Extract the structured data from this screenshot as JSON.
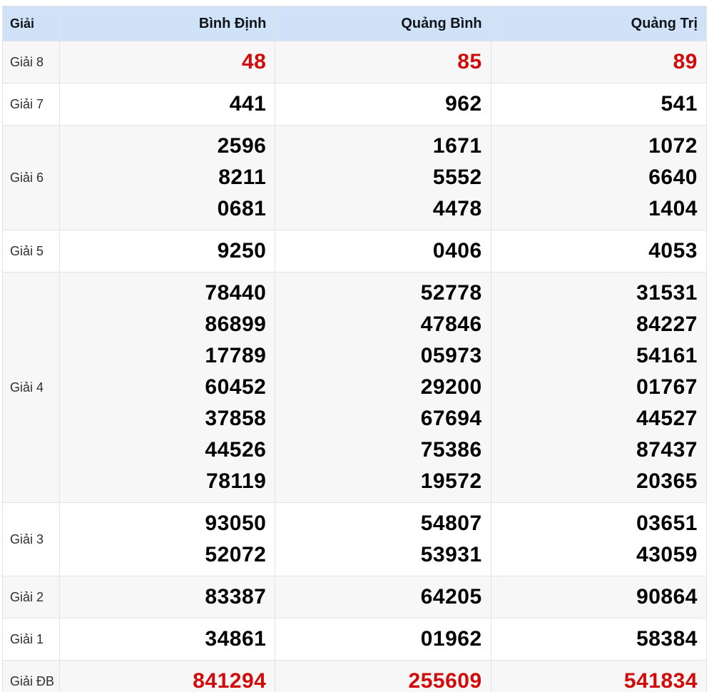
{
  "table": {
    "corner_label": "Giải",
    "columns": [
      "Bình Định",
      "Quảng Bình",
      "Quảng Trị"
    ],
    "rows": [
      {
        "label": "Giải 8",
        "highlight": true,
        "striped": true,
        "values": [
          [
            "48"
          ],
          [
            "85"
          ],
          [
            "89"
          ]
        ]
      },
      {
        "label": "Giải 7",
        "highlight": false,
        "striped": false,
        "values": [
          [
            "441"
          ],
          [
            "962"
          ],
          [
            "541"
          ]
        ]
      },
      {
        "label": "Giải 6",
        "highlight": false,
        "striped": true,
        "values": [
          [
            "2596",
            "8211",
            "0681"
          ],
          [
            "1671",
            "5552",
            "4478"
          ],
          [
            "1072",
            "6640",
            "1404"
          ]
        ]
      },
      {
        "label": "Giải 5",
        "highlight": false,
        "striped": false,
        "values": [
          [
            "9250"
          ],
          [
            "0406"
          ],
          [
            "4053"
          ]
        ]
      },
      {
        "label": "Giải 4",
        "highlight": false,
        "striped": true,
        "values": [
          [
            "78440",
            "86899",
            "17789",
            "60452",
            "37858",
            "44526",
            "78119"
          ],
          [
            "52778",
            "47846",
            "05973",
            "29200",
            "67694",
            "75386",
            "19572"
          ],
          [
            "31531",
            "84227",
            "54161",
            "01767",
            "44527",
            "87437",
            "20365"
          ]
        ]
      },
      {
        "label": "Giải 3",
        "highlight": false,
        "striped": false,
        "values": [
          [
            "93050",
            "52072"
          ],
          [
            "54807",
            "53931"
          ],
          [
            "03651",
            "43059"
          ]
        ]
      },
      {
        "label": "Giải 2",
        "highlight": false,
        "striped": true,
        "values": [
          [
            "83387"
          ],
          [
            "64205"
          ],
          [
            "90864"
          ]
        ]
      },
      {
        "label": "Giải 1",
        "highlight": false,
        "striped": false,
        "values": [
          [
            "34861"
          ],
          [
            "01962"
          ],
          [
            "58384"
          ]
        ]
      },
      {
        "label": "Giải ĐB",
        "highlight": true,
        "striped": true,
        "values": [
          [
            "841294"
          ],
          [
            "255609"
          ],
          [
            "541834"
          ]
        ]
      }
    ],
    "colors": {
      "header_bg": "#cfe2f8",
      "row_alt_bg": "#f7f7f7",
      "border": "#e3e3e3",
      "highlight_red": "#d10a0a",
      "number_black": "#000000",
      "label_gray": "#2f2f2f"
    }
  }
}
